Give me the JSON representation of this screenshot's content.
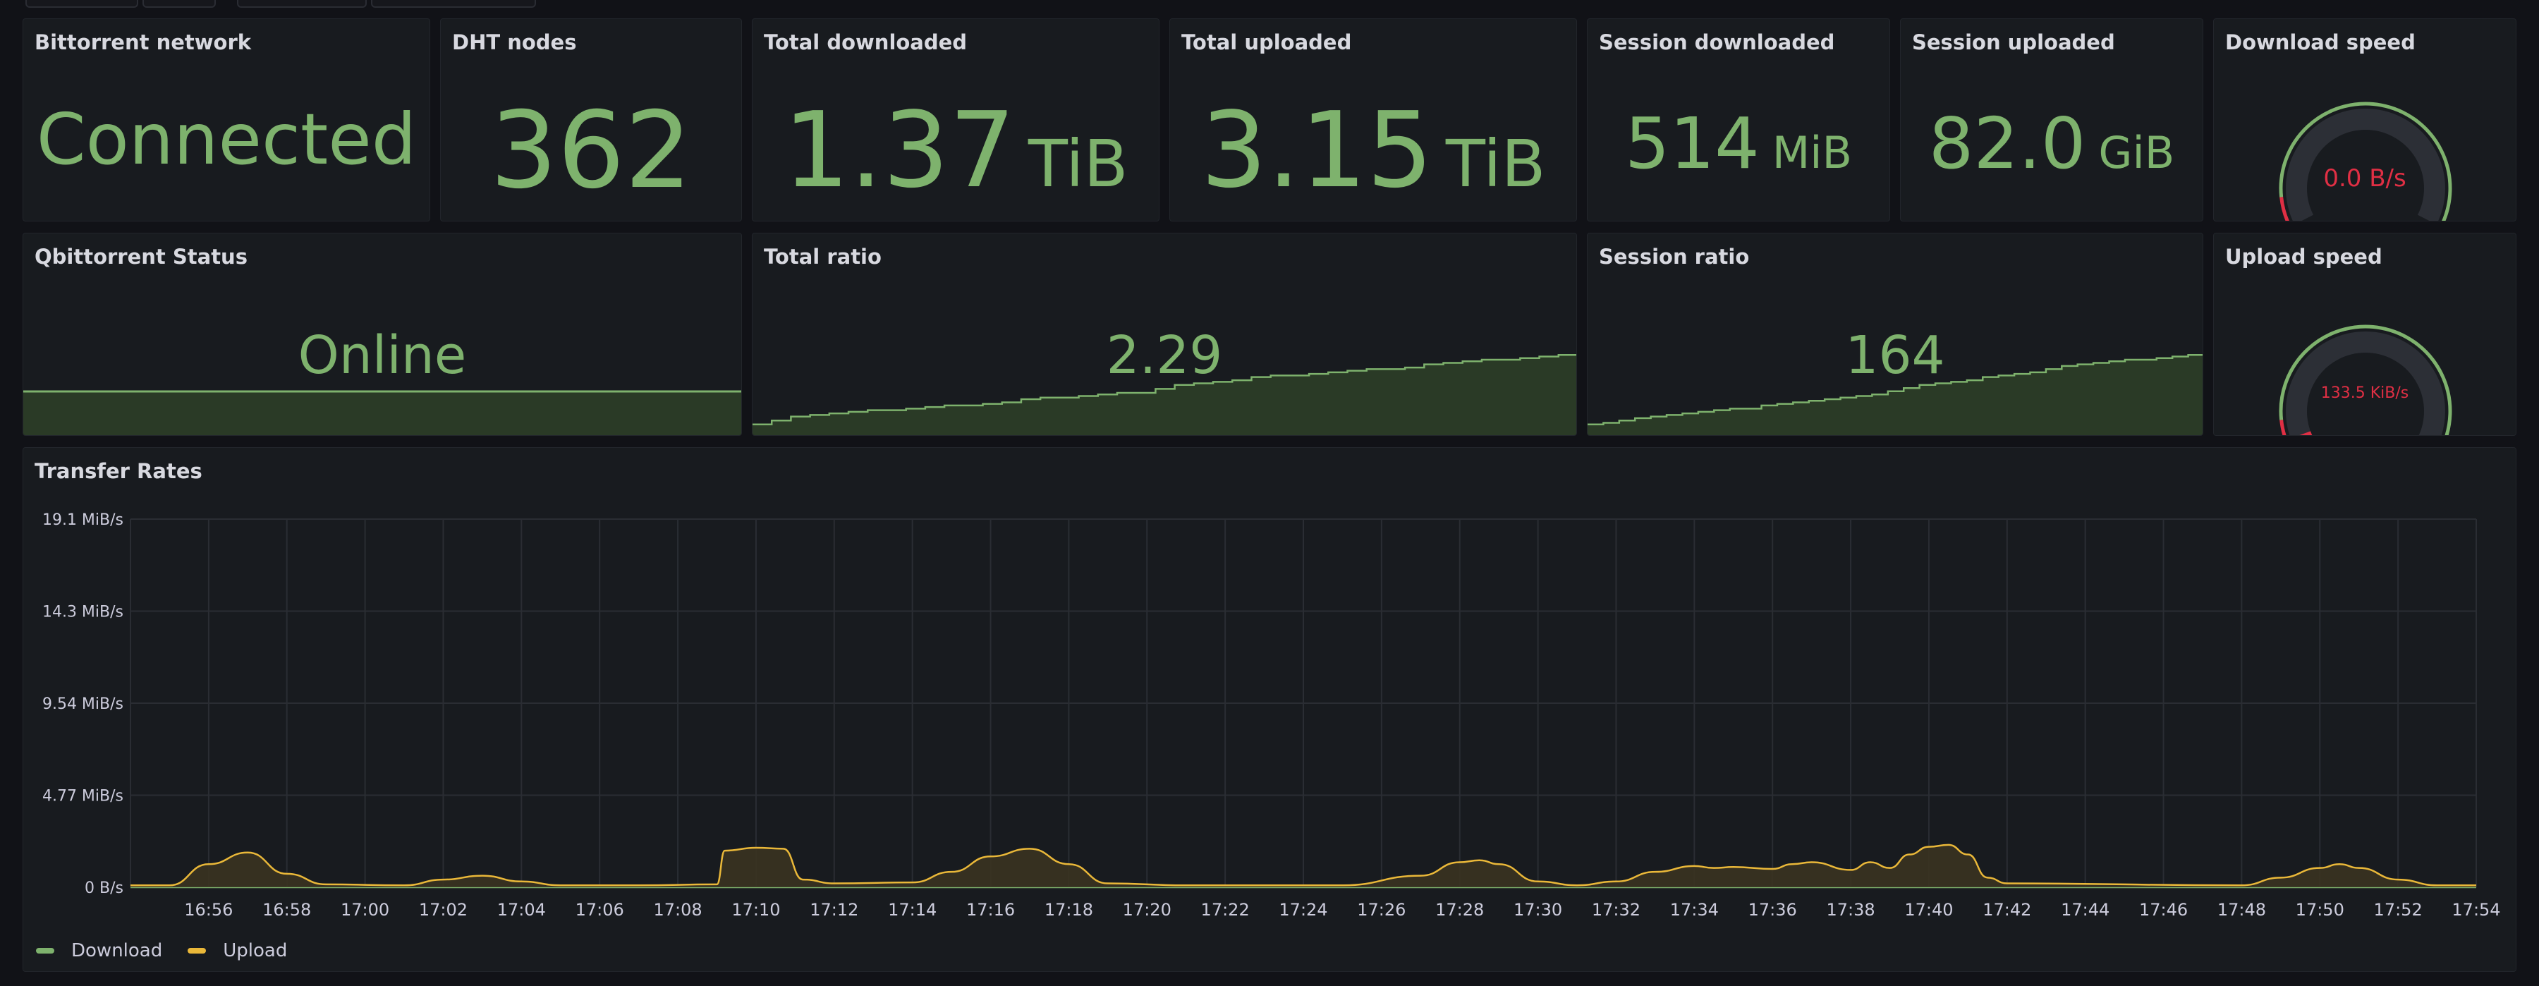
{
  "stats": {
    "network": {
      "title": "Bittorrent network",
      "value": "Connected"
    },
    "dht": {
      "title": "DHT nodes",
      "value": "362"
    },
    "total_down": {
      "title": "Total downloaded",
      "value": "1.37",
      "unit": "TiB"
    },
    "total_up": {
      "title": "Total uploaded",
      "value": "3.15",
      "unit": "TiB"
    },
    "session_down": {
      "title": "Session downloaded",
      "value": "514",
      "unit": "MiB"
    },
    "session_up": {
      "title": "Session uploaded",
      "value": "82.0",
      "unit": "GiB"
    },
    "download_speed": {
      "title": "Download speed",
      "value": "0.0 B/s",
      "fraction": 0
    },
    "status": {
      "title": "Qbittorrent Status",
      "value": "Online"
    },
    "total_ratio": {
      "title": "Total ratio",
      "value": "2.29"
    },
    "session_ratio": {
      "title": "Session ratio",
      "value": "164"
    },
    "upload_speed": {
      "title": "Upload speed",
      "value": "133.5 KiB/s",
      "fraction": 0.03
    }
  },
  "colors": {
    "green": "#7eb26d",
    "red": "#e02f44",
    "yellow": "#eab839"
  },
  "transfer": {
    "title": "Transfer Rates"
  },
  "chart_data": {
    "type": "area",
    "title": "Transfer Rates",
    "y_ticks": [
      "19.1 MiB/s",
      "14.3 MiB/s",
      "9.54 MiB/s",
      "4.77 MiB/s",
      "0 B/s"
    ],
    "ylim": [
      0,
      19.1
    ],
    "y_unit": "MiB/s",
    "x_ticks": [
      "16:56",
      "16:58",
      "17:00",
      "17:02",
      "17:04",
      "17:06",
      "17:08",
      "17:10",
      "17:12",
      "17:14",
      "17:16",
      "17:18",
      "17:20",
      "17:22",
      "17:24",
      "17:26",
      "17:28",
      "17:30",
      "17:32",
      "17:34",
      "17:36",
      "17:38",
      "17:40",
      "17:42",
      "17:44",
      "17:46",
      "17:48",
      "17:50",
      "17:52",
      "17:54"
    ],
    "series": [
      {
        "name": "Download",
        "color": "#7eb26d",
        "points": [
          [
            "16:54",
            0
          ],
          [
            "17:54",
            0
          ]
        ]
      },
      {
        "name": "Upload",
        "color": "#eab839",
        "points": [
          [
            "16:54",
            0.1
          ],
          [
            "16:55",
            0.1
          ],
          [
            "16:56",
            1.2
          ],
          [
            "16:57",
            1.8
          ],
          [
            "16:58",
            0.7
          ],
          [
            "16:59",
            0.15
          ],
          [
            "17:01",
            0.1
          ],
          [
            "17:02",
            0.4
          ],
          [
            "17:03",
            0.6
          ],
          [
            "17:04",
            0.3
          ],
          [
            "17:05",
            0.1
          ],
          [
            "17:07",
            0.1
          ],
          [
            "17:09",
            0.15
          ],
          [
            "17:09.2",
            1.9
          ],
          [
            "17:10",
            2.05
          ],
          [
            "17:10.7",
            2.0
          ],
          [
            "17:11.2",
            0.4
          ],
          [
            "17:12",
            0.2
          ],
          [
            "17:14",
            0.25
          ],
          [
            "17:15",
            0.8
          ],
          [
            "17:16",
            1.6
          ],
          [
            "17:17",
            2.0
          ],
          [
            "17:18",
            1.2
          ],
          [
            "17:19",
            0.2
          ],
          [
            "17:21",
            0.1
          ],
          [
            "17:25",
            0.1
          ],
          [
            "17:27",
            0.6
          ],
          [
            "17:28",
            1.3
          ],
          [
            "17:28.5",
            1.4
          ],
          [
            "17:29",
            1.2
          ],
          [
            "17:30",
            0.3
          ],
          [
            "17:31",
            0.1
          ],
          [
            "17:32",
            0.3
          ],
          [
            "17:33",
            0.8
          ],
          [
            "17:34",
            1.1
          ],
          [
            "17:34.5",
            1.0
          ],
          [
            "17:35",
            1.05
          ],
          [
            "17:36",
            0.95
          ],
          [
            "17:36.5",
            1.2
          ],
          [
            "17:37",
            1.3
          ],
          [
            "17:38",
            0.9
          ],
          [
            "17:38.5",
            1.3
          ],
          [
            "17:39",
            1.0
          ],
          [
            "17:39.5",
            1.7
          ],
          [
            "17:40",
            2.1
          ],
          [
            "17:40.5",
            2.2
          ],
          [
            "17:41",
            1.7
          ],
          [
            "17:41.5",
            0.5
          ],
          [
            "17:42",
            0.2
          ],
          [
            "17:48",
            0.1
          ],
          [
            "17:49",
            0.5
          ],
          [
            "17:50",
            1.0
          ],
          [
            "17:50.5",
            1.2
          ],
          [
            "17:51",
            1.0
          ],
          [
            "17:52",
            0.4
          ],
          [
            "17:53",
            0.1
          ],
          [
            "17:54",
            0.1
          ]
        ]
      }
    ],
    "legend_placement": "bottom-left",
    "grid": true
  },
  "legend": [
    {
      "label": "Download",
      "color": "#7eb26d"
    },
    {
      "label": "Upload",
      "color": "#eab839"
    }
  ],
  "total_ratio_trend": [
    0.1,
    0.15,
    0.2,
    0.22,
    0.24,
    0.26,
    0.28,
    0.28,
    0.3,
    0.32,
    0.34,
    0.34,
    0.36,
    0.38,
    0.42,
    0.44,
    0.44,
    0.46,
    0.48,
    0.5,
    0.5,
    0.55,
    0.6,
    0.62,
    0.64,
    0.66,
    0.7,
    0.72,
    0.72,
    0.74,
    0.76,
    0.78,
    0.8,
    0.8,
    0.82,
    0.86,
    0.88,
    0.9,
    0.92,
    0.92,
    0.94,
    0.96,
    0.98,
    1.0
  ],
  "session_ratio_trend": [
    0.1,
    0.12,
    0.15,
    0.18,
    0.2,
    0.22,
    0.24,
    0.26,
    0.28,
    0.3,
    0.3,
    0.34,
    0.36,
    0.38,
    0.4,
    0.42,
    0.44,
    0.46,
    0.48,
    0.52,
    0.56,
    0.6,
    0.62,
    0.64,
    0.66,
    0.7,
    0.72,
    0.74,
    0.76,
    0.8,
    0.84,
    0.86,
    0.88,
    0.9,
    0.92,
    0.92,
    0.94,
    0.96,
    0.98,
    1.0
  ]
}
